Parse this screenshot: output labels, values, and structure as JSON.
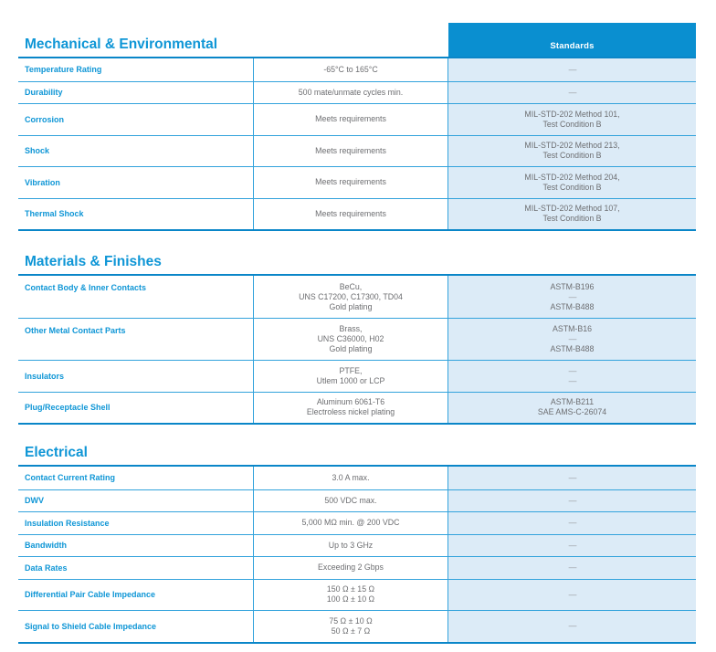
{
  "colors": {
    "primary_blue": "#0a8fd0",
    "label_blue": "#0f96d6",
    "thin_line": "#33a3dc",
    "thick_line": "#0a86c8",
    "light_blue_bg": "#dcebf7",
    "value_gray": "#6d6e71",
    "dash_gray": "#97999c",
    "header_text": "#ffffff"
  },
  "standards_header": {
    "label": "Standards"
  },
  "tables": [
    {
      "title": "Mechanical & Environmental",
      "rows": [
        {
          "label": "Temperature Rating",
          "value": "-65°C to 165°C",
          "standard": "—"
        },
        {
          "label": "Durability",
          "value": "500 mate/unmate cycles min.",
          "standard": "—"
        },
        {
          "label": "Corrosion",
          "value": "Meets requirements",
          "standard": "MIL-STD-202 Method 101,\nTest Condition B"
        },
        {
          "label": "Shock",
          "value": "Meets requirements",
          "standard": "MIL-STD-202 Method 213,\nTest Condition B"
        },
        {
          "label": "Vibration",
          "value": "Meets requirements",
          "standard": "MIL-STD-202 Method 204,\nTest Condition B"
        },
        {
          "label": "Thermal Shock",
          "value": "Meets requirements",
          "standard": "MIL-STD-202 Method 107,\nTest Condition B"
        }
      ]
    },
    {
      "title": "Materials & Finishes",
      "rows": [
        {
          "label": "Contact Body & Inner Contacts",
          "value": "BeCu,\nUNS C17200, C17300, TD04\nGold plating",
          "standard": "ASTM-B196\n—\nASTM-B488"
        },
        {
          "label": "Other Metal Contact Parts",
          "value": "Brass,\nUNS C36000, H02\nGold plating",
          "standard": "ASTM-B16\n—\nASTM-B488"
        },
        {
          "label": "Insulators",
          "value": "PTFE,\nUtlem 1000 or LCP",
          "standard": "—\n—"
        },
        {
          "label": "Plug/Receptacle Shell",
          "value": "Aluminum 6061-T6\nElectroless nickel plating",
          "standard": "ASTM-B211\nSAE AMS-C-26074"
        }
      ]
    },
    {
      "title": "Electrical",
      "rows": [
        {
          "label": "Contact Current Rating",
          "value": "3.0 A max.",
          "standard": "—"
        },
        {
          "label": "DWV",
          "value": "500 VDC max.",
          "standard": "—"
        },
        {
          "label": "Insulation Resistance",
          "value": "5,000 MΩ min. @ 200 VDC",
          "standard": "—"
        },
        {
          "label": "Bandwidth",
          "value": "Up to 3 GHz",
          "standard": "—"
        },
        {
          "label": "Data Rates",
          "value": "Exceeding 2 Gbps",
          "standard": "—"
        },
        {
          "label": "Differential Pair Cable Impedance",
          "value": "150 Ω ± 15 Ω\n100 Ω ± 10 Ω",
          "standard": "—"
        },
        {
          "label": "Signal to Shield Cable Impedance",
          "value": "75 Ω ± 10 Ω\n50 Ω ± 7 Ω",
          "standard": "—"
        }
      ]
    }
  ]
}
